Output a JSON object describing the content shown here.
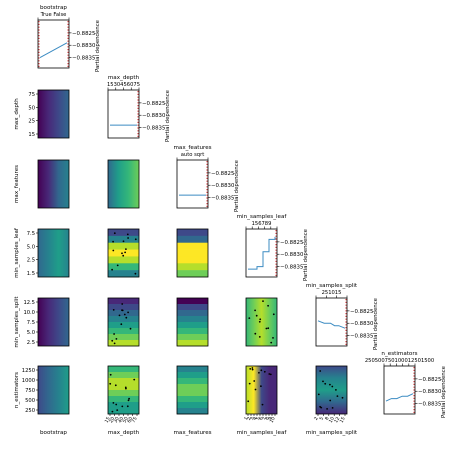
{
  "colors": {
    "line": "#3b8bc2",
    "marker_red": "#d62728",
    "scatter": "#000000",
    "viridis": [
      "#440154",
      "#482878",
      "#3e4989",
      "#31688e",
      "#26828e",
      "#1f9e89",
      "#35b779",
      "#6ece58",
      "#b5de2b",
      "#fde725"
    ]
  },
  "chart_data": {
    "type": "partial-dependence-matrix",
    "diagonal_ylabel": "Partial dependence",
    "partial_dependence_ticks": [
      "0.8825",
      "0.8830",
      "0.8835"
    ],
    "partial_dependence_range": [
      0.8838,
      0.8821
    ],
    "params": [
      {
        "name": "bootstrap",
        "row_label": "",
        "col_label": "bootstrap",
        "axis_ticks": [],
        "bottom_ticks": [],
        "top_ticks": [
          "True",
          "False"
        ],
        "pd_x": [
          0,
          1
        ],
        "pd_y": [
          0.8835,
          0.8829
        ]
      },
      {
        "name": "max_depth",
        "row_label": "max_depth",
        "col_label": "max_depth",
        "axis_ticks": [
          "75",
          "50",
          "25",
          "15"
        ],
        "bottom_ticks": [
          "15",
          "20",
          "30",
          "40",
          "50",
          "60",
          "75"
        ],
        "top_ticks": [
          "15",
          "30",
          "45",
          "60",
          "75"
        ],
        "pd_x": [
          15,
          20,
          30,
          40,
          50,
          60,
          75
        ],
        "pd_y": [
          0.8834,
          0.8834,
          0.8834,
          0.8834,
          0.8834,
          0.8834,
          0.8834
        ]
      },
      {
        "name": "max_features",
        "row_label": "max_features",
        "col_label": "max_features",
        "axis_ticks": [],
        "bottom_ticks": [],
        "top_ticks": [
          "auto",
          "sqrt"
        ],
        "pd_x": [
          0,
          1
        ],
        "pd_y": [
          0.8834,
          0.8834
        ]
      },
      {
        "name": "min_samples_leaf",
        "row_label": "min_samples_leaf",
        "col_label": "min_samples_leaf",
        "axis_ticks": [
          "7.5",
          "5.0",
          "2.5",
          "1.5"
        ],
        "bottom_ticks": [
          "1",
          "2",
          "3",
          "4",
          "5",
          "6",
          "7",
          "8",
          "9",
          "10"
        ],
        "top_ticks": [
          "1",
          "5",
          "6",
          "7",
          "8",
          "9"
        ],
        "pd_x": [
          1,
          2,
          3,
          4,
          5,
          6,
          7,
          8,
          9,
          10
        ],
        "pd_y": [
          0.8836,
          0.8836,
          0.8836,
          0.8835,
          0.8835,
          0.8829,
          0.8829,
          0.8824,
          0.8824,
          0.8823
        ]
      },
      {
        "name": "min_samples_split",
        "row_label": "min_samples_split",
        "col_label": "min_samples_split",
        "axis_ticks": [
          "12.5",
          "10.0",
          "7.5",
          "5.0",
          "2.5"
        ],
        "bottom_ticks": [
          "2",
          "5",
          "8",
          "10",
          "12",
          "15"
        ],
        "top_ticks": [
          "2",
          "5",
          "10",
          "15"
        ],
        "pd_x": [
          2,
          5,
          8,
          10,
          12,
          15
        ],
        "pd_y": [
          0.8829,
          0.883,
          0.883,
          0.8831,
          0.8831,
          0.8832
        ]
      },
      {
        "name": "n_estimators",
        "row_label": "n_estimators",
        "col_label": "n_estimators",
        "axis_ticks": [
          "1250",
          "1000",
          "750",
          "500",
          "250"
        ],
        "bottom_ticks": [],
        "top_ticks": [
          "250",
          "500",
          "750",
          "1000",
          "1250",
          "1500"
        ],
        "pd_x": [
          250,
          500,
          750,
          1000,
          1250,
          1500
        ],
        "pd_y": [
          0.8834,
          0.8833,
          0.8833,
          0.8832,
          0.8832,
          0.8831
        ]
      }
    ]
  }
}
